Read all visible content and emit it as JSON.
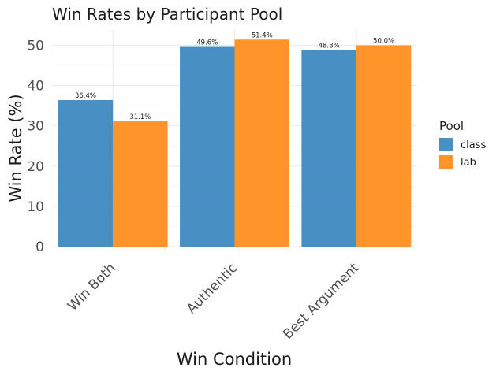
{
  "chart_data": {
    "type": "bar",
    "title": "Win Rates by Participant Pool",
    "xlabel": "Win Condition",
    "ylabel": "Win Rate (%)",
    "categories": [
      "Win Both",
      "Authentic",
      "Best Argument"
    ],
    "series": [
      {
        "name": "class",
        "values": [
          36.4,
          49.6,
          48.8
        ],
        "labels": [
          "36.4%",
          "49.6%",
          "48.8%"
        ],
        "color": "#3a87c0"
      },
      {
        "name": "lab",
        "values": [
          31.1,
          51.4,
          50.0
        ],
        "labels": [
          "31.1%",
          "51.4%",
          "50.0%"
        ],
        "color": "#ff8c1a"
      }
    ],
    "ylim": [
      0,
      54
    ],
    "yticks": [
      0,
      10,
      20,
      30,
      40,
      50
    ],
    "grid": true,
    "legend": {
      "title": "Pool",
      "position": "right"
    }
  }
}
